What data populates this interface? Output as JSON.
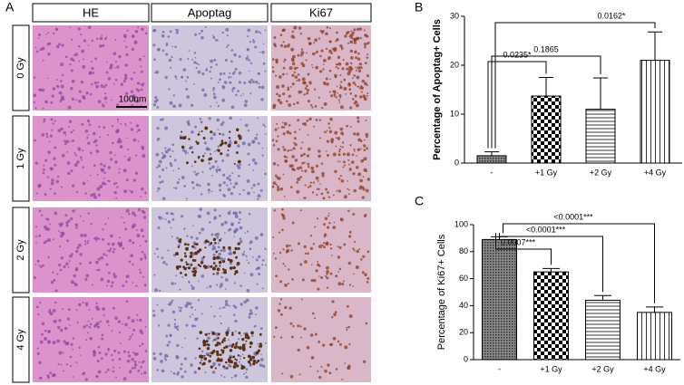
{
  "panels": {
    "a_label": "A",
    "b_label": "B",
    "c_label": "C",
    "columns": [
      "HE",
      "Apoptag",
      "Ki67"
    ],
    "rows": [
      "0 Gy",
      "1 Gy",
      "2 Gy",
      "4 Gy"
    ],
    "scale_bar": "100um"
  },
  "chart_data": [
    {
      "type": "bar",
      "y_label": "Percentage of Apoptag+ Cells",
      "categories": [
        "-",
        "+1 Gy",
        "+2 Gy",
        "+4 Gy"
      ],
      "values": [
        1.5,
        13.7,
        11,
        21
      ],
      "errors": [
        0.8,
        3.8,
        6.4,
        5.8
      ],
      "ylim": [
        0,
        30
      ],
      "yticks": [
        0,
        10,
        20,
        30
      ],
      "annotations": [
        "0.0235*",
        "0.1865",
        "0.0162*"
      ]
    },
    {
      "type": "bar",
      "y_label": "Percentage of Ki67+ Cells",
      "categories": [
        "-",
        "+1 Gy",
        "+2 Gy",
        "+4 Gy"
      ],
      "values": [
        89,
        65,
        44,
        35
      ],
      "errors": [
        2,
        2.5,
        3.5,
        4
      ],
      "ylim": [
        0,
        100
      ],
      "yticks": [
        0,
        20,
        40,
        60,
        80,
        100
      ],
      "annotations": [
        "0.0007***",
        "<0.0001***",
        "<0.0001***"
      ]
    }
  ]
}
